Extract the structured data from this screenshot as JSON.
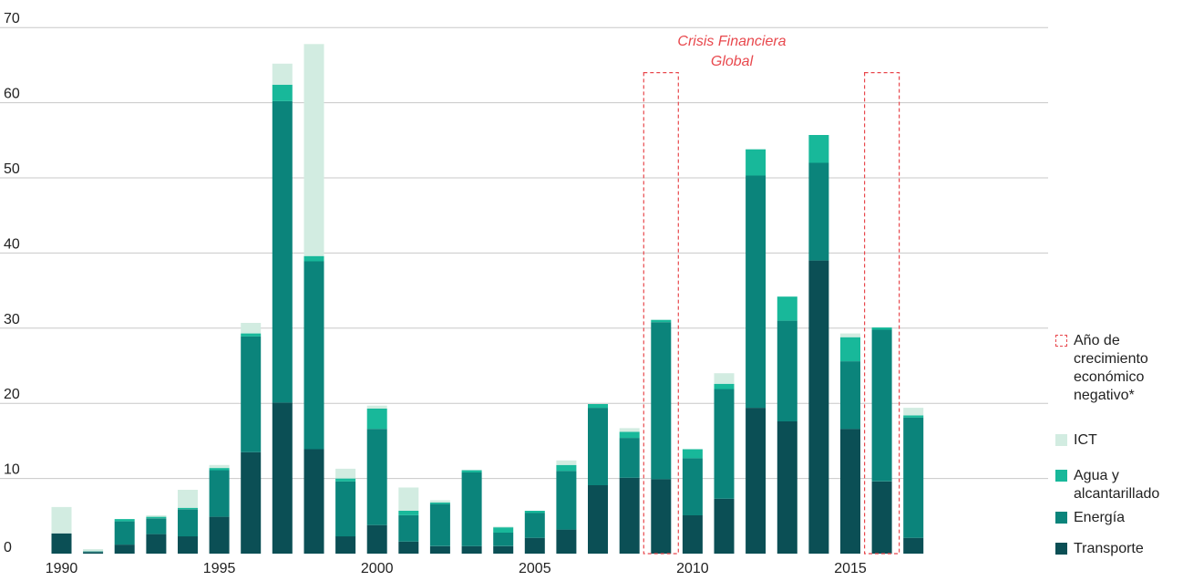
{
  "chart_data": {
    "type": "bar",
    "stacked": true,
    "title": "",
    "xlabel": "",
    "ylabel": "",
    "ylim": [
      0,
      70
    ],
    "yticks": [
      0,
      10,
      20,
      30,
      40,
      50,
      60,
      70
    ],
    "xticks": [
      1990,
      1995,
      2000,
      2005,
      2010,
      2015
    ],
    "grid": true,
    "legend_position": "right",
    "categories": [
      1990,
      1991,
      1992,
      1993,
      1994,
      1995,
      1996,
      1997,
      1998,
      1999,
      2000,
      2001,
      2002,
      2003,
      2004,
      2005,
      2006,
      2007,
      2008,
      2009,
      2010,
      2011,
      2012,
      2013,
      2014,
      2015,
      2016,
      2017
    ],
    "series": [
      {
        "name": "Transporte",
        "color": "#0b4f55",
        "values": [
          2.7,
          0.2,
          1.2,
          2.6,
          2.3,
          4.9,
          13.5,
          20.1,
          13.9,
          2.3,
          3.8,
          1.6,
          1.0,
          1.0,
          1.0,
          2.1,
          3.2,
          9.1,
          10.1,
          9.9,
          5.1,
          7.3,
          19.4,
          17.6,
          39.0,
          16.6,
          9.6,
          2.1
        ]
      },
      {
        "name": "Energía",
        "color": "#0b847b",
        "values": [
          0.0,
          0.1,
          3.1,
          2.1,
          3.6,
          6.2,
          15.4,
          40.1,
          25.0,
          7.3,
          12.8,
          3.5,
          5.6,
          9.8,
          1.8,
          3.3,
          7.8,
          10.3,
          5.3,
          20.9,
          7.6,
          14.6,
          30.9,
          13.4,
          13.0,
          9.0,
          20.2,
          16.0
        ]
      },
      {
        "name": "Agua y alcantarillado",
        "color": "#18b89a",
        "values": [
          0.0,
          0.0,
          0.3,
          0.2,
          0.2,
          0.3,
          0.4,
          2.2,
          0.7,
          0.4,
          2.7,
          0.6,
          0.2,
          0.3,
          0.7,
          0.3,
          0.8,
          0.5,
          0.8,
          0.3,
          1.2,
          0.7,
          3.5,
          3.2,
          3.7,
          3.2,
          0.3,
          0.3
        ]
      },
      {
        "name": "ICT",
        "color": "#d2ece1",
        "values": [
          3.5,
          0.3,
          0.0,
          0.2,
          2.4,
          0.4,
          1.4,
          2.8,
          28.2,
          1.3,
          0.4,
          3.1,
          0.3,
          0.0,
          0.1,
          0.0,
          0.6,
          0.0,
          0.5,
          0.0,
          0.0,
          1.4,
          0.0,
          0.0,
          0.0,
          0.5,
          0.0,
          1.0
        ]
      }
    ],
    "highlight_years": [
      2009,
      2016
    ],
    "highlight_top_value": 64,
    "annotation": {
      "line1": "Crisis Financiera",
      "line2": "Global",
      "year": 2009
    }
  },
  "legend": {
    "negative_growth": [
      "Año de",
      "crecimiento",
      "económico",
      "negativo*"
    ],
    "ict": "ICT",
    "water": [
      "Agua y",
      "alcantarillado"
    ],
    "energy": "Energía",
    "transport": "Transporte"
  },
  "colors": {
    "transport": "#0b4f55",
    "energy": "#0b847b",
    "water": "#18b89a",
    "ict": "#d2ece1",
    "highlight": "#e8484d"
  }
}
